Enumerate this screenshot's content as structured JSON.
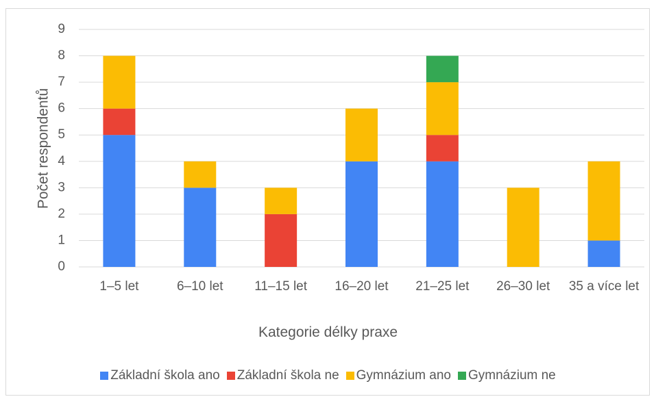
{
  "chart_data": {
    "type": "stacked_bar",
    "y_label": "Počet respondentů",
    "x_label": "Kategorie délky praxe",
    "categories": [
      "1–5 let",
      "6–10 let",
      "11–15 let",
      "16–20 let",
      "21–25 let",
      "26–30 let",
      "35 a více let"
    ],
    "series": [
      {
        "name": "Základní škola ano",
        "color": "#4285f4",
        "values": [
          5,
          3,
          0,
          4,
          4,
          0,
          1
        ]
      },
      {
        "name": "Základní škola ne",
        "color": "#ea4335",
        "values": [
          1,
          0,
          2,
          0,
          1,
          0,
          0
        ]
      },
      {
        "name": "Gymnázium ano",
        "color": "#fbbc04",
        "values": [
          2,
          1,
          1,
          2,
          2,
          3,
          3
        ]
      },
      {
        "name": "Gymnázium ne",
        "color": "#34a853",
        "values": [
          0,
          0,
          0,
          0,
          1,
          0,
          0
        ]
      }
    ],
    "ylim": [
      0,
      9
    ],
    "yticks": [
      0,
      1,
      2,
      3,
      4,
      5,
      6,
      7,
      8,
      9
    ],
    "grid": true,
    "legend": "bottom"
  }
}
